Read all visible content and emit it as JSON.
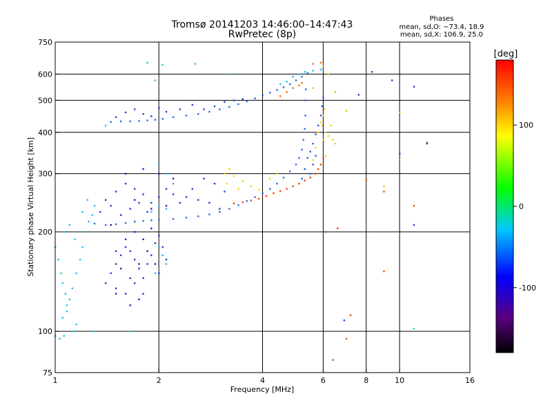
{
  "chart_data": {
    "type": "scatter",
    "title": "Tromsø 20141203 14:46:00–14:47:43",
    "subtitle": "RwPretec (8p)",
    "xlabel": "Frequency [MHz]",
    "ylabel": "Stationary phase Virtual Height [km]",
    "x_scale": "log",
    "y_scale": "log",
    "xlim": [
      1,
      16
    ],
    "ylim": [
      75,
      750
    ],
    "x_ticks": [
      1,
      2,
      4,
      6,
      8,
      10,
      16
    ],
    "y_ticks": [
      75,
      100,
      200,
      300,
      400,
      500,
      600,
      750
    ],
    "x_grid": [
      2,
      4,
      6,
      8,
      10
    ],
    "y_grid": [
      100,
      200,
      300,
      400,
      500,
      600
    ],
    "grid": true,
    "legend": {
      "title": "Phases",
      "lines": [
        "mean, sd,O: −73.4, 18.9",
        "mean, sd,X: 106.9, 25.0"
      ],
      "placement": "top-right"
    },
    "colorbar": {
      "label": "[deg]",
      "min": -180,
      "max": 180,
      "ticks": [
        100,
        0,
        -100
      ],
      "stops": [
        "#000000",
        "#5a0080",
        "#0000ff",
        "#00c8ff",
        "#00ff00",
        "#ffff00",
        "#ff7f00",
        "#ff0000"
      ]
    },
    "series": [
      {
        "trace": "upper band (ledge)",
        "color": "#1e6fe0",
        "points": [
          [
            1.45,
            430
          ],
          [
            1.55,
            432
          ],
          [
            1.65,
            432
          ],
          [
            1.75,
            433
          ],
          [
            1.85,
            435
          ],
          [
            1.95,
            437
          ],
          [
            2.05,
            440
          ],
          [
            2.2,
            445
          ],
          [
            2.4,
            450
          ],
          [
            2.6,
            455
          ],
          [
            2.8,
            462
          ],
          [
            3.0,
            470
          ],
          [
            3.2,
            478
          ],
          [
            3.4,
            487
          ],
          [
            3.6,
            497
          ],
          [
            3.8,
            507
          ],
          [
            4.0,
            518
          ],
          [
            4.2,
            528
          ],
          [
            4.4,
            538
          ],
          [
            4.6,
            548
          ],
          [
            4.8,
            560
          ],
          [
            5.0,
            575
          ],
          [
            5.2,
            590
          ],
          [
            5.4,
            605
          ]
        ]
      },
      {
        "trace": "upper band (sparse ledge)",
        "color": "#2a3fd0",
        "points": [
          [
            1.5,
            445
          ],
          [
            1.6,
            460
          ],
          [
            1.7,
            470
          ],
          [
            1.8,
            455
          ],
          [
            1.9,
            448
          ],
          [
            2.0,
            475
          ],
          [
            2.1,
            462
          ],
          [
            2.3,
            470
          ],
          [
            2.5,
            485
          ],
          [
            2.7,
            470
          ],
          [
            2.9,
            480
          ],
          [
            3.1,
            495
          ],
          [
            3.3,
            500
          ],
          [
            3.5,
            505
          ]
        ]
      },
      {
        "trace": "upper band (cyan tail)",
        "color": "#00c8ff",
        "points": [
          [
            4.9,
            590
          ],
          [
            5.1,
            600
          ],
          [
            5.3,
            610
          ],
          [
            5.6,
            615
          ],
          [
            5.9,
            620
          ],
          [
            4.7,
            570
          ],
          [
            4.5,
            560
          ]
        ]
      },
      {
        "trace": "upper band (orange)",
        "color": "#ff6a00",
        "points": [
          [
            4.5,
            515
          ],
          [
            4.7,
            530
          ],
          [
            4.9,
            545
          ],
          [
            5.1,
            555
          ],
          [
            5.2,
            565
          ],
          [
            5.6,
            645
          ],
          [
            5.9,
            650
          ]
        ]
      },
      {
        "trace": "upper band (yellow)",
        "color": "#ffd000",
        "points": [
          [
            6.0,
            450
          ],
          [
            5.95,
            420
          ],
          [
            6.1,
            400
          ],
          [
            6.0,
            380
          ],
          [
            5.9,
            430
          ],
          [
            6.05,
            470
          ],
          [
            5.8,
            400
          ],
          [
            5.7,
            360
          ],
          [
            6.2,
            390
          ],
          [
            6.4,
            380
          ],
          [
            6.3,
            420
          ],
          [
            6.5,
            370
          ],
          [
            5.6,
            330
          ],
          [
            6.1,
            340
          ]
        ]
      },
      {
        "trace": "lower F-trace",
        "color": "#1e6fe0",
        "points": [
          [
            1.3,
            212
          ],
          [
            1.4,
            210
          ],
          [
            1.5,
            211
          ],
          [
            1.6,
            213
          ],
          [
            1.7,
            215
          ],
          [
            1.8,
            216
          ],
          [
            1.9,
            217
          ],
          [
            2.0,
            218
          ],
          [
            2.2,
            219
          ],
          [
            2.4,
            221
          ],
          [
            2.6,
            223
          ],
          [
            2.8,
            226
          ],
          [
            3.0,
            230
          ],
          [
            3.2,
            235
          ],
          [
            3.4,
            241
          ],
          [
            3.6,
            248
          ],
          [
            3.8,
            255
          ],
          [
            4.0,
            262
          ],
          [
            4.2,
            270
          ],
          [
            4.4,
            280
          ],
          [
            4.6,
            292
          ],
          [
            4.8,
            305
          ],
          [
            5.0,
            320
          ],
          [
            5.1,
            335
          ],
          [
            5.2,
            355
          ],
          [
            5.25,
            380
          ],
          [
            5.3,
            410
          ],
          [
            5.32,
            450
          ],
          [
            5.33,
            500
          ],
          [
            5.34,
            540
          ]
        ]
      },
      {
        "trace": "lower F-trace (red)",
        "color": "#ff3a00",
        "points": [
          [
            3.3,
            244
          ],
          [
            3.5,
            246
          ],
          [
            3.7,
            249
          ],
          [
            3.9,
            252
          ],
          [
            4.1,
            257
          ],
          [
            4.3,
            262
          ],
          [
            4.5,
            266
          ],
          [
            4.7,
            270
          ],
          [
            4.9,
            275
          ],
          [
            5.1,
            280
          ],
          [
            5.3,
            286
          ],
          [
            5.5,
            292
          ],
          [
            5.7,
            300
          ],
          [
            5.8,
            310
          ],
          [
            5.9,
            320
          ],
          [
            6.0,
            335
          ]
        ]
      },
      {
        "trace": "lower F-trace (yellow)",
        "color": "#ffd000",
        "points": [
          [
            3.1,
            300
          ],
          [
            3.2,
            310
          ],
          [
            3.3,
            295
          ],
          [
            3.5,
            285
          ],
          [
            3.7,
            275
          ],
          [
            3.9,
            268
          ],
          [
            3.15,
            280
          ],
          [
            3.4,
            270
          ],
          [
            4.4,
            300
          ],
          [
            4.2,
            290
          ]
        ]
      },
      {
        "trace": "x-trace (blue)",
        "color": "#1e5fd8",
        "points": [
          [
            5.4,
            335
          ],
          [
            5.5,
            350
          ],
          [
            5.6,
            370
          ],
          [
            5.7,
            395
          ],
          [
            5.8,
            420
          ],
          [
            5.9,
            450
          ],
          [
            5.95,
            480
          ],
          [
            6.0,
            510
          ],
          [
            5.5,
            300
          ],
          [
            5.3,
            310
          ],
          [
            5.6,
            320
          ],
          [
            5.7,
            340
          ],
          [
            5.2,
            290
          ]
        ]
      },
      {
        "trace": "low-frequency cyan cloud",
        "color": "#19c0e6",
        "points": [
          [
            1.0,
            180
          ],
          [
            1.02,
            165
          ],
          [
            1.04,
            150
          ],
          [
            1.05,
            140
          ],
          [
            1.07,
            130
          ],
          [
            1.08,
            120
          ],
          [
            1.1,
            125
          ],
          [
            1.12,
            135
          ],
          [
            1.15,
            150
          ],
          [
            1.18,
            165
          ],
          [
            1.2,
            180
          ],
          [
            1.22,
            200
          ],
          [
            1.25,
            215
          ],
          [
            1.28,
            225
          ],
          [
            1.3,
            240
          ],
          [
            1.06,
            200
          ],
          [
            1.1,
            210
          ],
          [
            1.14,
            190
          ],
          [
            1.2,
            230
          ],
          [
            1.24,
            250
          ],
          [
            1.0,
            97
          ],
          [
            1.03,
            95
          ],
          [
            1.06,
            97
          ],
          [
            1.12,
            100
          ],
          [
            1.15,
            105
          ],
          [
            1.05,
            110
          ],
          [
            1.08,
            115
          ]
        ]
      },
      {
        "trace": "scatter (blue)",
        "color": "#1a3ce0",
        "points": [
          [
            1.4,
            140
          ],
          [
            1.45,
            150
          ],
          [
            1.5,
            160
          ],
          [
            1.55,
            170
          ],
          [
            1.6,
            180
          ],
          [
            1.65,
            175
          ],
          [
            1.7,
            165
          ],
          [
            1.75,
            155
          ],
          [
            1.8,
            145
          ],
          [
            1.85,
            160
          ],
          [
            1.9,
            170
          ],
          [
            1.95,
            185
          ],
          [
            2.0,
            195
          ],
          [
            2.05,
            180
          ],
          [
            2.1,
            165
          ],
          [
            1.4,
            250
          ],
          [
            1.5,
            265
          ],
          [
            1.6,
            280
          ],
          [
            1.7,
            270
          ],
          [
            1.8,
            260
          ],
          [
            1.9,
            245
          ],
          [
            2.0,
            255
          ],
          [
            2.1,
            270
          ],
          [
            2.2,
            260
          ],
          [
            2.3,
            245
          ],
          [
            2.4,
            255
          ],
          [
            1.35,
            230
          ],
          [
            1.45,
            240
          ],
          [
            1.55,
            225
          ],
          [
            1.65,
            235
          ],
          [
            1.75,
            245
          ],
          [
            1.85,
            230
          ],
          [
            2.5,
            270
          ],
          [
            2.6,
            250
          ],
          [
            2.8,
            245
          ],
          [
            3.0,
            235
          ],
          [
            2.7,
            290
          ],
          [
            2.9,
            280
          ],
          [
            3.1,
            265
          ],
          [
            1.5,
            135
          ],
          [
            1.6,
            130
          ],
          [
            1.7,
            140
          ],
          [
            1.8,
            130
          ],
          [
            2.0,
            150
          ]
        ]
      },
      {
        "trace": "scatter (dark blue)",
        "color": "#2a18b8",
        "points": [
          [
            1.5,
            175
          ],
          [
            1.6,
            190
          ],
          [
            1.7,
            200
          ],
          [
            1.8,
            190
          ],
          [
            1.9,
            205
          ],
          [
            1.55,
            155
          ],
          [
            1.65,
            145
          ],
          [
            1.75,
            160
          ],
          [
            1.85,
            175
          ],
          [
            1.95,
            160
          ],
          [
            1.45,
            210
          ],
          [
            1.6,
            300
          ],
          [
            1.8,
            310
          ],
          [
            2.0,
            300
          ],
          [
            2.2,
            290
          ],
          [
            1.7,
            250
          ],
          [
            1.9,
            235
          ],
          [
            2.1,
            240
          ],
          [
            1.65,
            120
          ],
          [
            1.75,
            125
          ],
          [
            1.5,
            130
          ]
        ]
      },
      {
        "trace": "scatter (sky blue)",
        "color": "#3aa8f0",
        "points": [
          [
            1.9,
            230
          ],
          [
            2.0,
            240
          ],
          [
            2.1,
            235
          ],
          [
            2.0,
            320
          ],
          [
            2.1,
            300
          ],
          [
            2.2,
            280
          ],
          [
            2.0,
            180
          ],
          [
            2.05,
            170
          ],
          [
            2.1,
            160
          ],
          [
            1.95,
            150
          ]
        ]
      },
      {
        "trace": "sparse high-frequency points",
        "color": "#e05000",
        "points": [
          [
            6.1,
            200
          ],
          [
            6.6,
            205
          ],
          [
            7.0,
            95
          ],
          [
            7.2,
            112
          ],
          [
            6.4,
            82
          ],
          [
            9.0,
            265
          ],
          [
            11.0,
            240
          ],
          [
            8.0,
            288
          ],
          [
            9.0,
            152
          ],
          [
            12.0,
            373
          ]
        ]
      },
      {
        "trace": "sparse high-frequency points (blue)",
        "color": "#2040d0",
        "points": [
          [
            7.6,
            520
          ],
          [
            9.5,
            575
          ],
          [
            11.0,
            550
          ],
          [
            12.0,
            370
          ],
          [
            10.0,
            345
          ],
          [
            11.0,
            210
          ],
          [
            6.9,
            108
          ],
          [
            8.3,
            610
          ]
        ]
      },
      {
        "trace": "sparse scattered (cyan)",
        "color": "#20c8d8",
        "points": [
          [
            1.85,
            650
          ],
          [
            2.05,
            640
          ],
          [
            2.55,
            645
          ],
          [
            1.3,
            100
          ],
          [
            1.65,
            100
          ],
          [
            1.4,
            420
          ],
          [
            1.95,
            575
          ],
          [
            3.2,
            600
          ],
          [
            11.0,
            102
          ]
        ]
      },
      {
        "trace": "sparse scattered (yellow)",
        "color": "#e0c800",
        "points": [
          [
            6.0,
            635
          ],
          [
            6.2,
            600
          ],
          [
            5.6,
            545
          ],
          [
            6.5,
            530
          ],
          [
            9.0,
            275
          ],
          [
            10.0,
            460
          ],
          [
            7.0,
            465
          ]
        ]
      }
    ]
  }
}
